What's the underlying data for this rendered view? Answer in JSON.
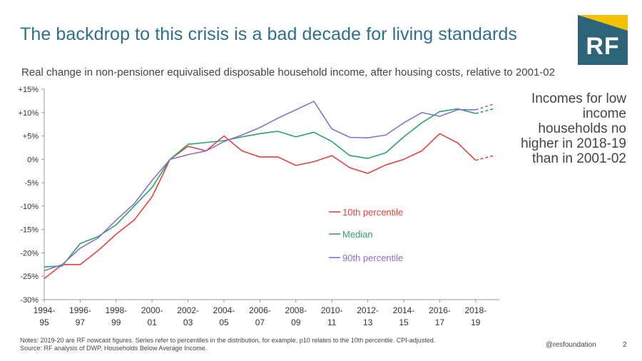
{
  "slide": {
    "title": "The backdrop to this crisis is a bad decade for living standards",
    "logo_text": "RF",
    "annotation": "Incomes for low income households no higher in 2018-19 than in 2001-02",
    "notes_line1": "Notes: 2019-20 are RF nowcast figures. Series refer to percentiles in the distribution, for example, p10 relates to the 10th percentile. CPI-adjusted.",
    "notes_line2": "Source: RF analysis of DWP, Households Below Average Income.",
    "handle": "@resfoundation",
    "page_number": "2"
  },
  "colors": {
    "title": "#2f6f8e",
    "logo_bg": "#2e6477",
    "logo_accent": "#f3c300",
    "p10": "#e8413c",
    "median": "#2aa36b",
    "p90": "#8a6fcf",
    "axis": "#999999"
  },
  "chart_data": {
    "type": "line",
    "title": "Real change in non-pensioner equivalised disposable household income, after housing costs, relative to 2001-02",
    "ylim": [
      -30,
      15
    ],
    "y_ticks": [
      15,
      10,
      5,
      0,
      -5,
      -10,
      -15,
      -20,
      -25,
      -30
    ],
    "y_tick_labels": [
      "+15%",
      "+10%",
      "+5%",
      "0%",
      "-5%",
      "-10%",
      "-15%",
      "-20%",
      "-25%",
      "-30%"
    ],
    "x": [
      "1994-95",
      "1995-96",
      "1996-97",
      "1997-98",
      "1998-99",
      "1999-00",
      "2000-01",
      "2001-02",
      "2002-03",
      "2003-04",
      "2004-05",
      "2005-06",
      "2006-07",
      "2007-08",
      "2008-09",
      "2009-10",
      "2010-11",
      "2011-12",
      "2012-13",
      "2013-14",
      "2014-15",
      "2015-16",
      "2016-17",
      "2017-18",
      "2018-19",
      "2019-20"
    ],
    "x_tick_labels": [
      [
        "1994-",
        "95"
      ],
      [
        "1996-",
        "97"
      ],
      [
        "1998-",
        "99"
      ],
      [
        "2000-",
        "01"
      ],
      [
        "2002-",
        "03"
      ],
      [
        "2004-",
        "05"
      ],
      [
        "2006-",
        "07"
      ],
      [
        "2008-",
        "09"
      ],
      [
        "2010-",
        "11"
      ],
      [
        "2012-",
        "13"
      ],
      [
        "2014-",
        "15"
      ],
      [
        "2016-",
        "17"
      ],
      [
        "2018-",
        "19"
      ]
    ],
    "nowcast_from": "2018-19",
    "series": [
      {
        "name": "10th percentile",
        "color_key": "p10",
        "values": [
          -25.5,
          -22.5,
          -22.5,
          -19.5,
          -16.0,
          -13.0,
          -8.0,
          0.0,
          2.8,
          1.8,
          5.0,
          1.8,
          0.5,
          0.5,
          -1.3,
          -0.5,
          0.8,
          -1.8,
          -3.0,
          -1.2,
          0.0,
          1.8,
          5.5,
          3.5,
          -0.2,
          0.8
        ]
      },
      {
        "name": "Median",
        "color_key": "median",
        "values": [
          -23.0,
          -22.8,
          -18.0,
          -16.5,
          -14.0,
          -10.0,
          -6.0,
          0.0,
          3.2,
          3.6,
          4.0,
          4.8,
          5.5,
          6.0,
          4.8,
          5.8,
          3.8,
          0.8,
          0.2,
          1.4,
          4.8,
          7.8,
          10.2,
          10.8,
          9.8,
          10.8
        ]
      },
      {
        "name": "90th percentile",
        "color_key": "p90",
        "values": [
          -23.8,
          -22.5,
          -19.0,
          -16.8,
          -13.0,
          -9.5,
          -4.5,
          0.0,
          1.0,
          1.8,
          3.8,
          5.2,
          6.8,
          8.8,
          10.6,
          12.4,
          6.5,
          4.7,
          4.6,
          5.2,
          7.8,
          10.0,
          9.2,
          10.6,
          10.6,
          11.8
        ]
      }
    ]
  }
}
